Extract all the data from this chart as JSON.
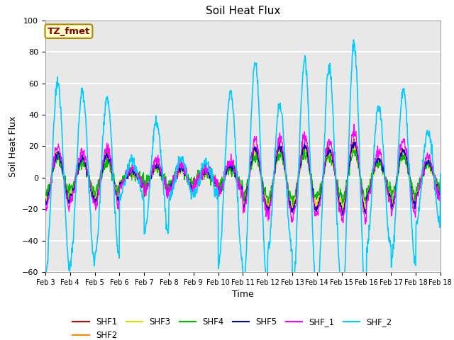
{
  "title": "Soil Heat Flux",
  "xlabel": "Time",
  "ylabel": "Soil Heat Flux",
  "ylim": [
    -60,
    100
  ],
  "xlim": [
    0,
    16
  ],
  "xtick_labels": [
    "Feb 3",
    "Feb 4",
    "Feb 5",
    "Feb 6",
    "Feb 7",
    "Feb 8",
    "Feb 9",
    "Feb 10",
    "Feb 11",
    "Feb 12",
    "Feb 13",
    "Feb 14",
    "Feb 15",
    "Feb 16",
    "Feb 17",
    "Feb 18"
  ],
  "series_colors": {
    "SHF1": "#cc0000",
    "SHF2": "#ff8800",
    "SHF3": "#dddd00",
    "SHF4": "#00bb00",
    "SHF5": "#0000cc",
    "SHF_1": "#ff00ff",
    "SHF_2": "#00ccff"
  },
  "annotation_text": "TZ_fmet",
  "annotation_bg": "#ffffcc",
  "annotation_border": "#aa8800",
  "annotation_text_color": "#880000",
  "bg_color": "#e8e8e8",
  "grid_color": "#ffffff"
}
